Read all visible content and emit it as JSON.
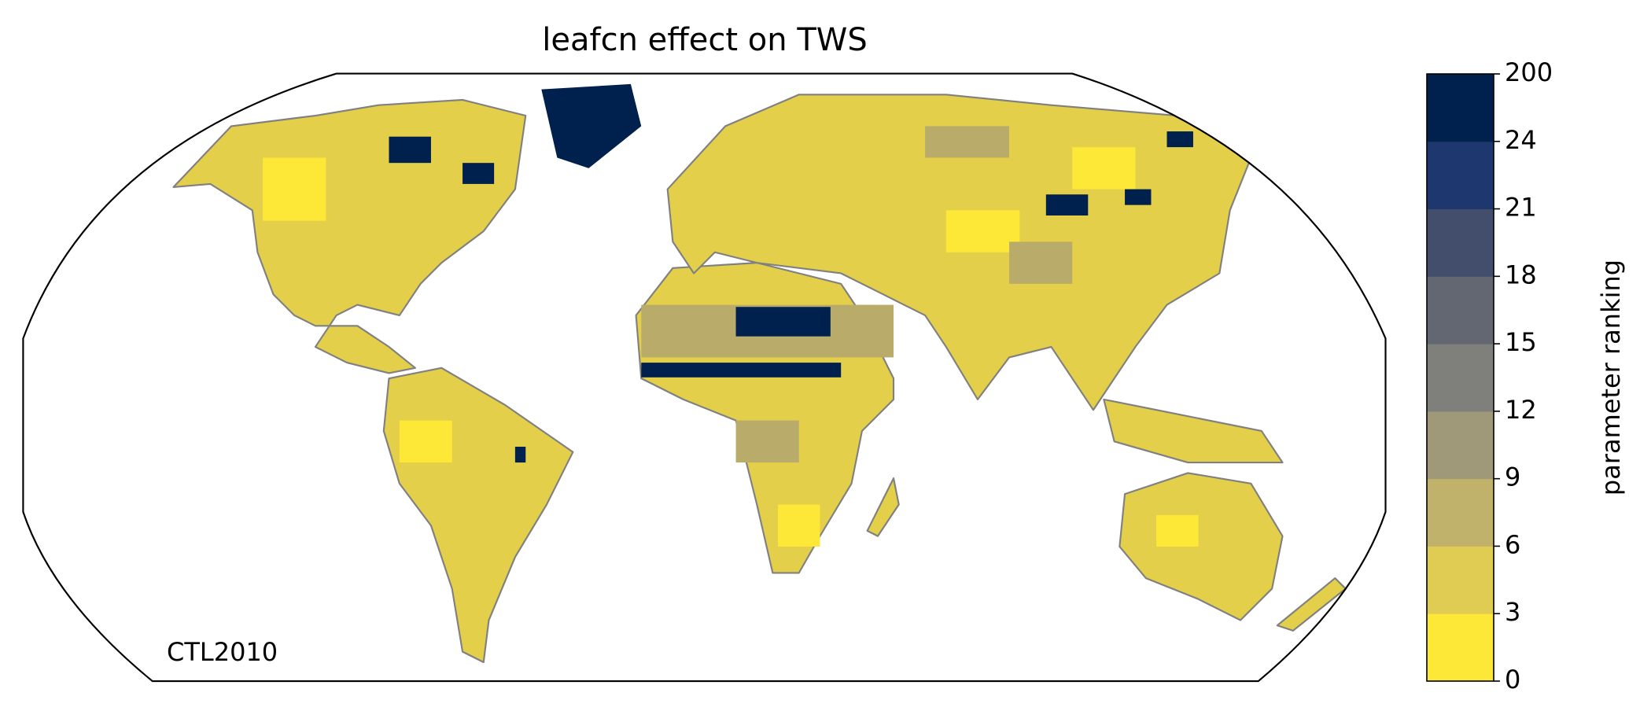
{
  "title": "leafcn effect on TWS",
  "annotation": "CTL2010",
  "colorbar": {
    "label": "parameter ranking",
    "ticks": [
      0,
      3,
      6,
      9,
      12,
      15,
      18,
      21,
      24,
      200
    ],
    "colors": [
      "#fde737",
      "#e0cc53",
      "#c0b26b",
      "#a09979",
      "#7f7f7c",
      "#626771",
      "#434e6c",
      "#1e376e",
      "#00204d"
    ]
  }
}
